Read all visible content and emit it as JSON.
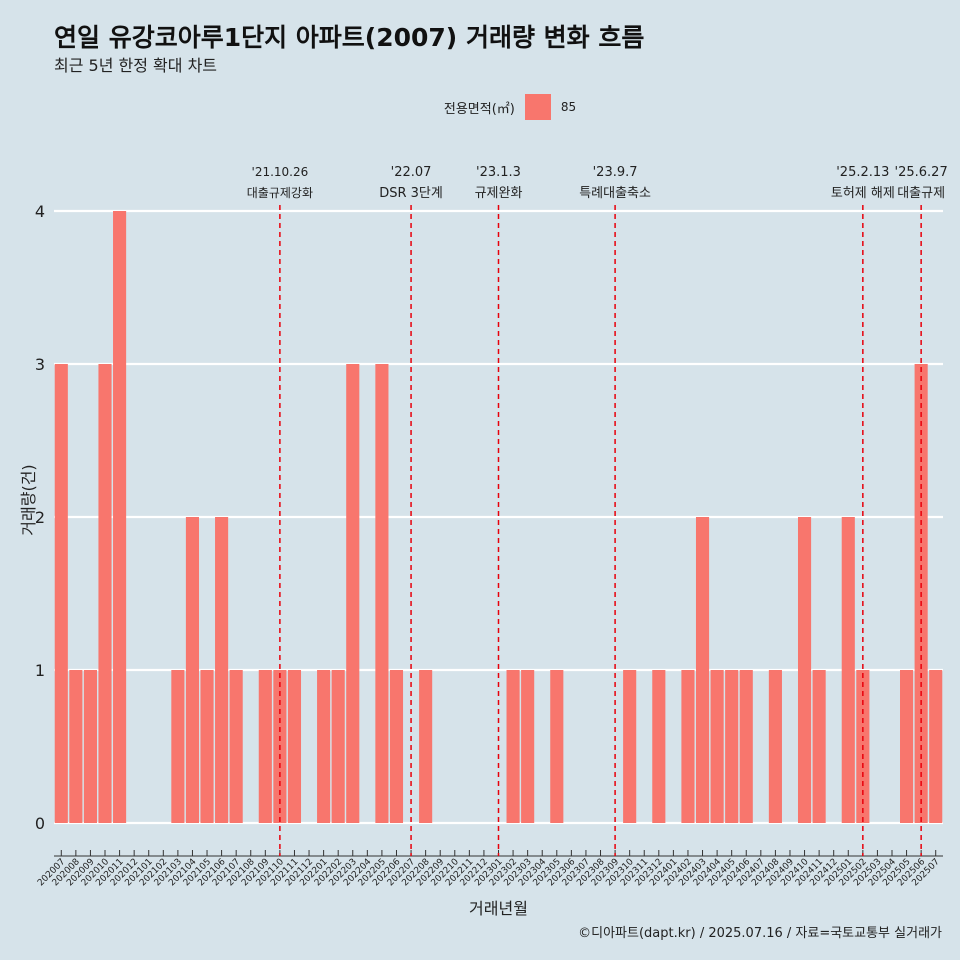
{
  "title": "연일 유강코아루1단지 아파트(2007) 거래량 변화 흐름",
  "subtitle": "최근 5년 한정 확대 차트",
  "legend": {
    "title": "전용면적(㎡)",
    "label": "85"
  },
  "caption": "©디아파트(dapt.kr) / 2025.07.16 / 자료=국토교통부 실거래가",
  "colors": {
    "bar": "#f8766d",
    "vline": "#e8000b",
    "background": "#d6e3ea",
    "grid": "#ffffff"
  },
  "chart_data": {
    "type": "bar",
    "xlabel": "거래년월",
    "ylabel": "거래량(건)",
    "ylim": [
      0,
      4
    ],
    "yticks": [
      0,
      1,
      2,
      3,
      4
    ],
    "grid": true,
    "legend_position": "top",
    "categories": [
      "202007",
      "202008",
      "202009",
      "202010",
      "202011",
      "202012",
      "202101",
      "202102",
      "202103",
      "202104",
      "202105",
      "202106",
      "202107",
      "202108",
      "202109",
      "202110",
      "202111",
      "202112",
      "202201",
      "202202",
      "202203",
      "202204",
      "202205",
      "202206",
      "202207",
      "202208",
      "202209",
      "202210",
      "202211",
      "202212",
      "202301",
      "202302",
      "202303",
      "202304",
      "202305",
      "202306",
      "202307",
      "202308",
      "202309",
      "202310",
      "202311",
      "202312",
      "202401",
      "202402",
      "202403",
      "202404",
      "202405",
      "202406",
      "202407",
      "202408",
      "202409",
      "202410",
      "202411",
      "202412",
      "202501",
      "202502",
      "202503",
      "202504",
      "202505",
      "202506",
      "202507"
    ],
    "series": [
      {
        "name": "85",
        "values": [
          3,
          1,
          1,
          3,
          4,
          0,
          0,
          0,
          1,
          2,
          1,
          2,
          1,
          0,
          1,
          1,
          1,
          0,
          1,
          1,
          3,
          0,
          3,
          1,
          0,
          1,
          0,
          0,
          0,
          0,
          0,
          1,
          1,
          0,
          1,
          0,
          0,
          0,
          0,
          1,
          0,
          1,
          0,
          1,
          2,
          1,
          1,
          1,
          0,
          1,
          0,
          2,
          1,
          0,
          2,
          1,
          0,
          0,
          1,
          3,
          1
        ]
      }
    ],
    "annotations": [
      {
        "category": "202110",
        "date": "'21.10.26",
        "text": "대출규제강화"
      },
      {
        "category": "202207",
        "date": "'22.07",
        "text": "DSR 3단계"
      },
      {
        "category": "202301",
        "date": "'23.1.3",
        "text": "규제완화"
      },
      {
        "category": "202309",
        "date": "'23.9.7",
        "text": "특례대출축소"
      },
      {
        "category": "202502",
        "date": "'25.2.13",
        "text": "토허제 해제"
      },
      {
        "category": "202506",
        "date": "'25.6.27",
        "text": "대출규제"
      }
    ]
  }
}
